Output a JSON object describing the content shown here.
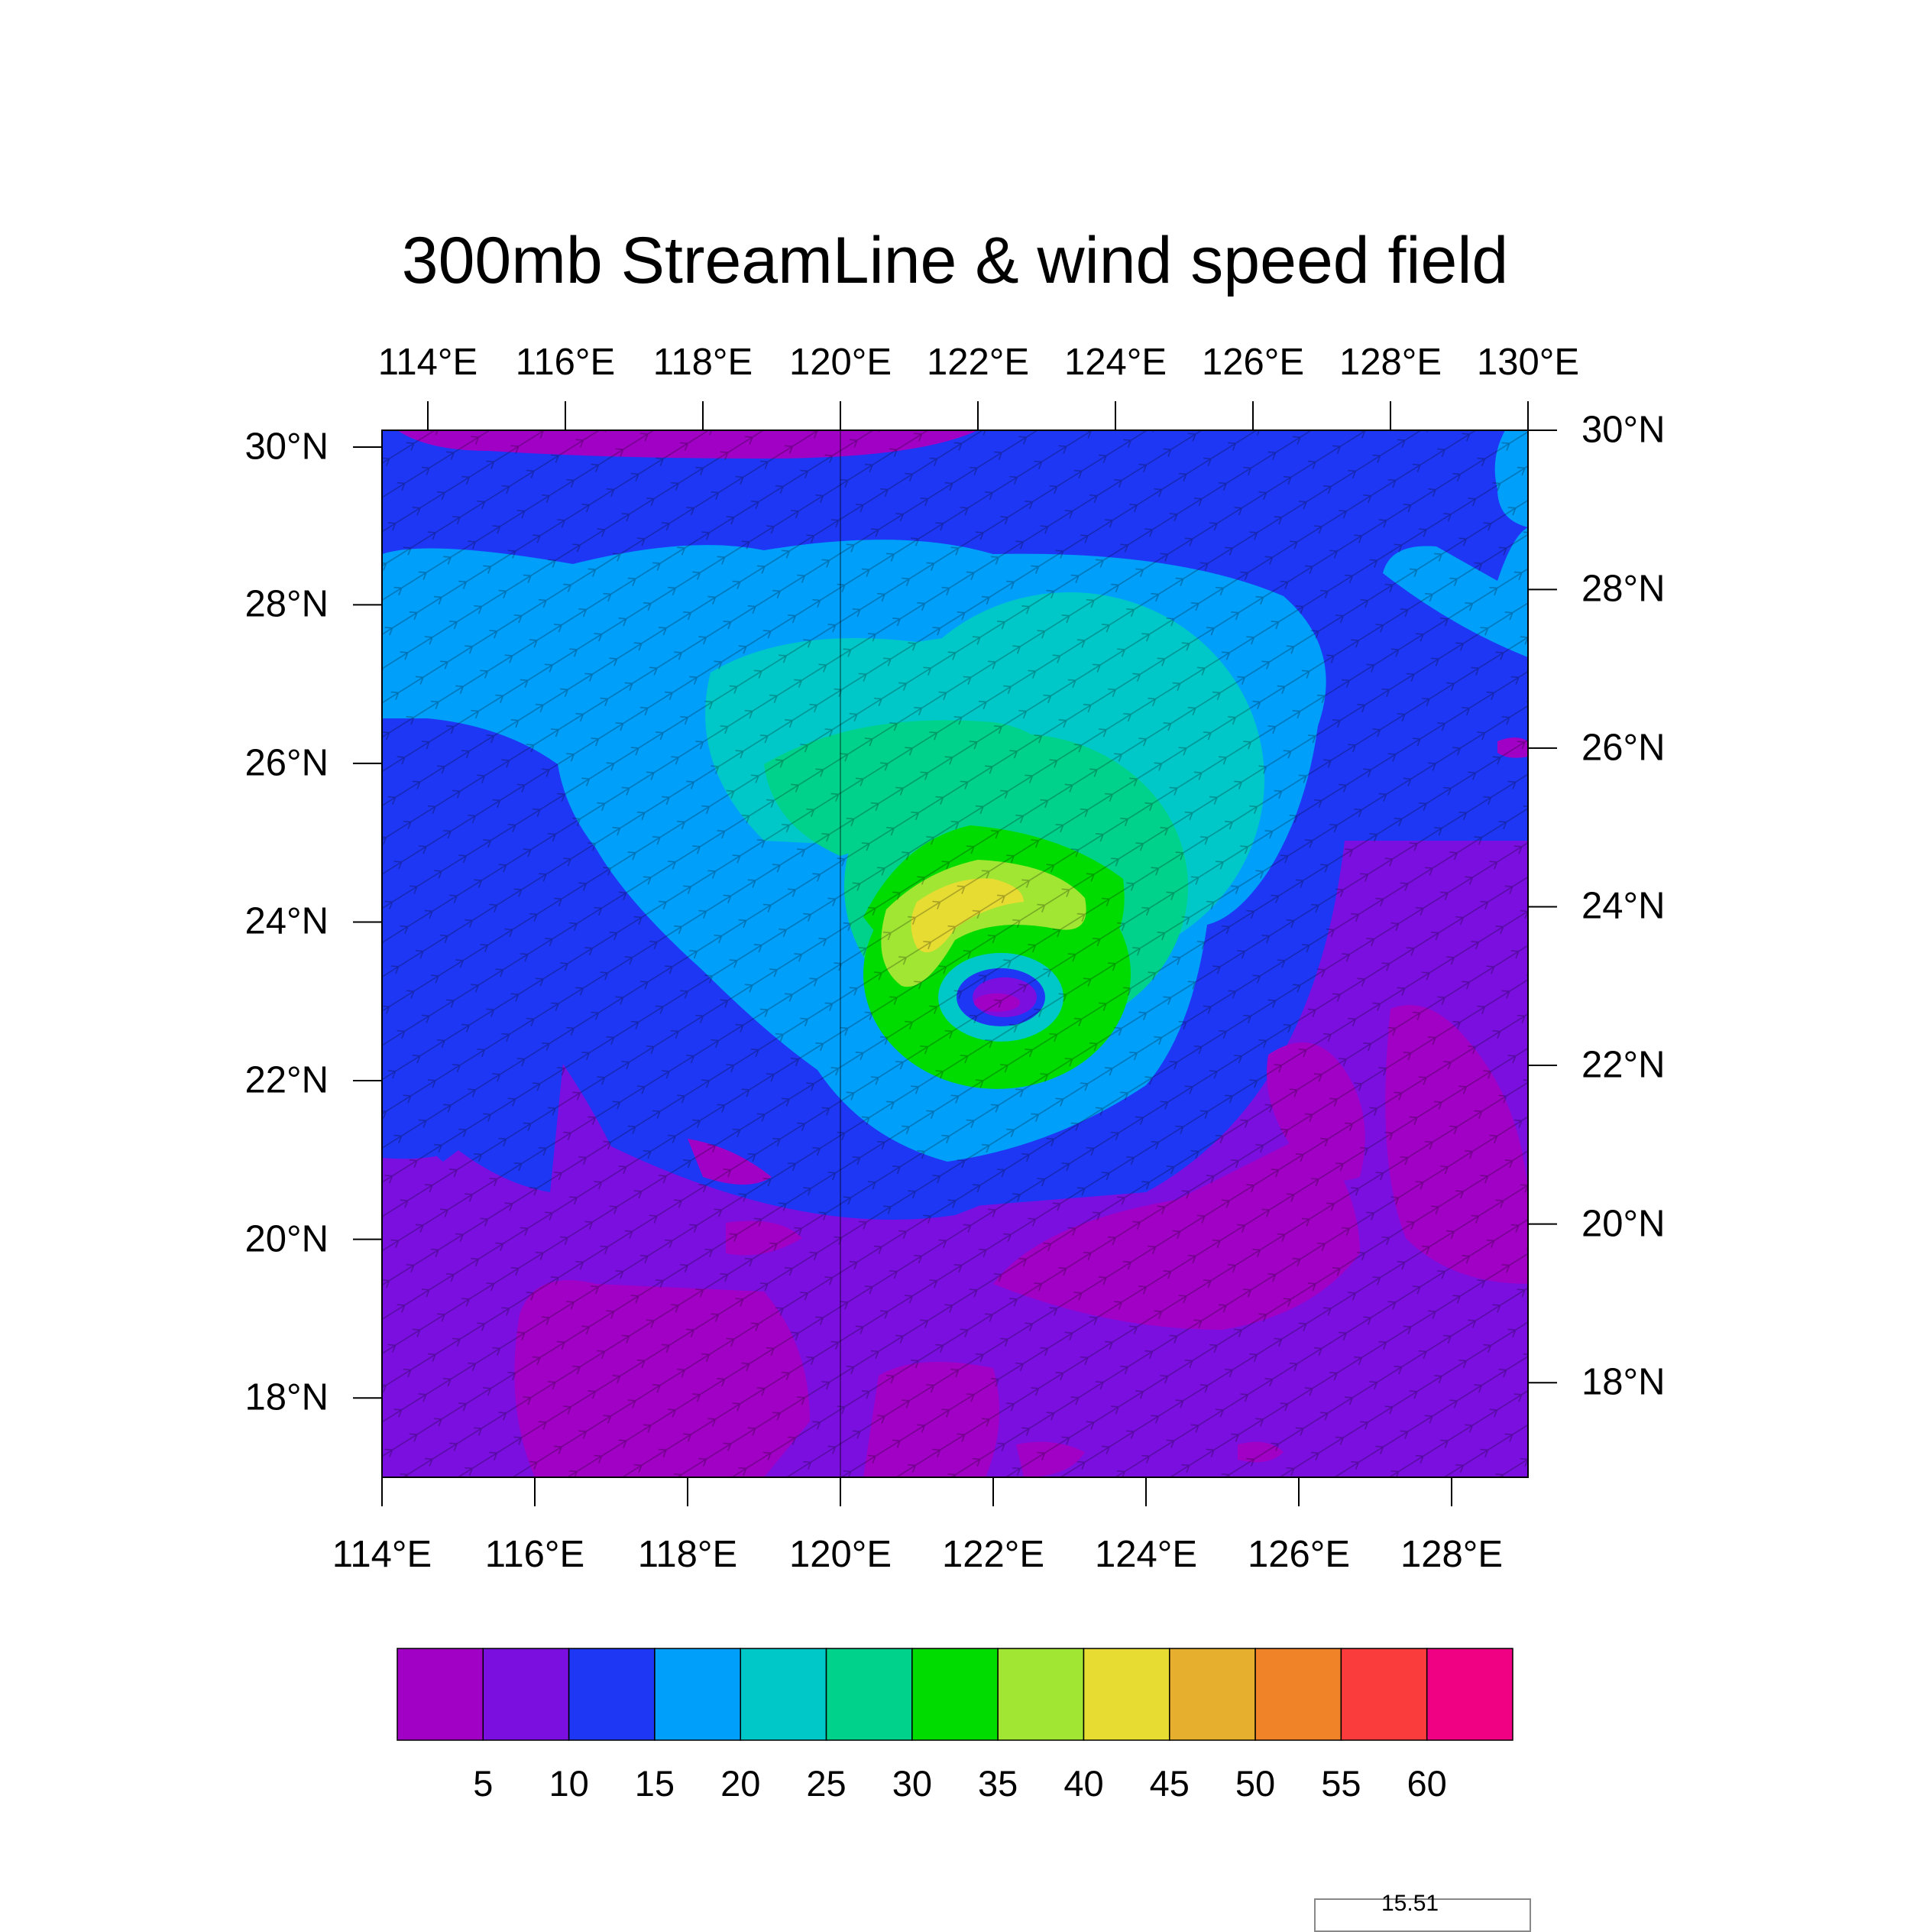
{
  "title": "300mb StreamLine & wind speed field",
  "map": {
    "lon_range": [
      114,
      129
    ],
    "lat_range": [
      17,
      30.2
    ],
    "top_lon_ticks": [
      "114°E",
      "116°E",
      "118°E",
      "120°E",
      "122°E",
      "124°E",
      "126°E",
      "128°E",
      "130°E"
    ],
    "bottom_lon_ticks": [
      "114°E",
      "116°E",
      "118°E",
      "120°E",
      "122°E",
      "124°E",
      "126°E",
      "128°E"
    ],
    "left_lat_ticks": [
      "30°N",
      "28°N",
      "26°N",
      "24°N",
      "22°N",
      "20°N",
      "18°N"
    ],
    "right_lat_ticks": [
      "30°N",
      "28°N",
      "26°N",
      "24°N",
      "22°N",
      "20°N",
      "18°N"
    ],
    "typhoon_center": {
      "lon": 122.1,
      "lat": 23.1
    },
    "colors": {
      "lt5": "#a100c5",
      "5_10": "#7a0fe0",
      "10_15": "#1e37f5",
      "15_20": "#009ffa",
      "20_25": "#00c8c8",
      "25_30": "#00d28c",
      "30_35": "#00dc00",
      "35_40": "#a0e632",
      "40_45": "#e6dc32",
      "45_50": "#e6af2d",
      "50_55": "#f08228",
      "55_60": "#fa3c3c",
      "ge60": "#f00082"
    }
  },
  "colorbar": {
    "colors": [
      "#a100c5",
      "#7a0fe0",
      "#1e37f5",
      "#009ffa",
      "#00c8c8",
      "#00d28c",
      "#00dc00",
      "#a0e632",
      "#e6dc32",
      "#e6af2d",
      "#f08228",
      "#fa3c3c",
      "#f00082"
    ],
    "labels": [
      "5",
      "10",
      "15",
      "20",
      "25",
      "30",
      "35",
      "40",
      "45",
      "50",
      "55",
      "60"
    ]
  },
  "reference_vector": {
    "label": "15.51"
  }
}
